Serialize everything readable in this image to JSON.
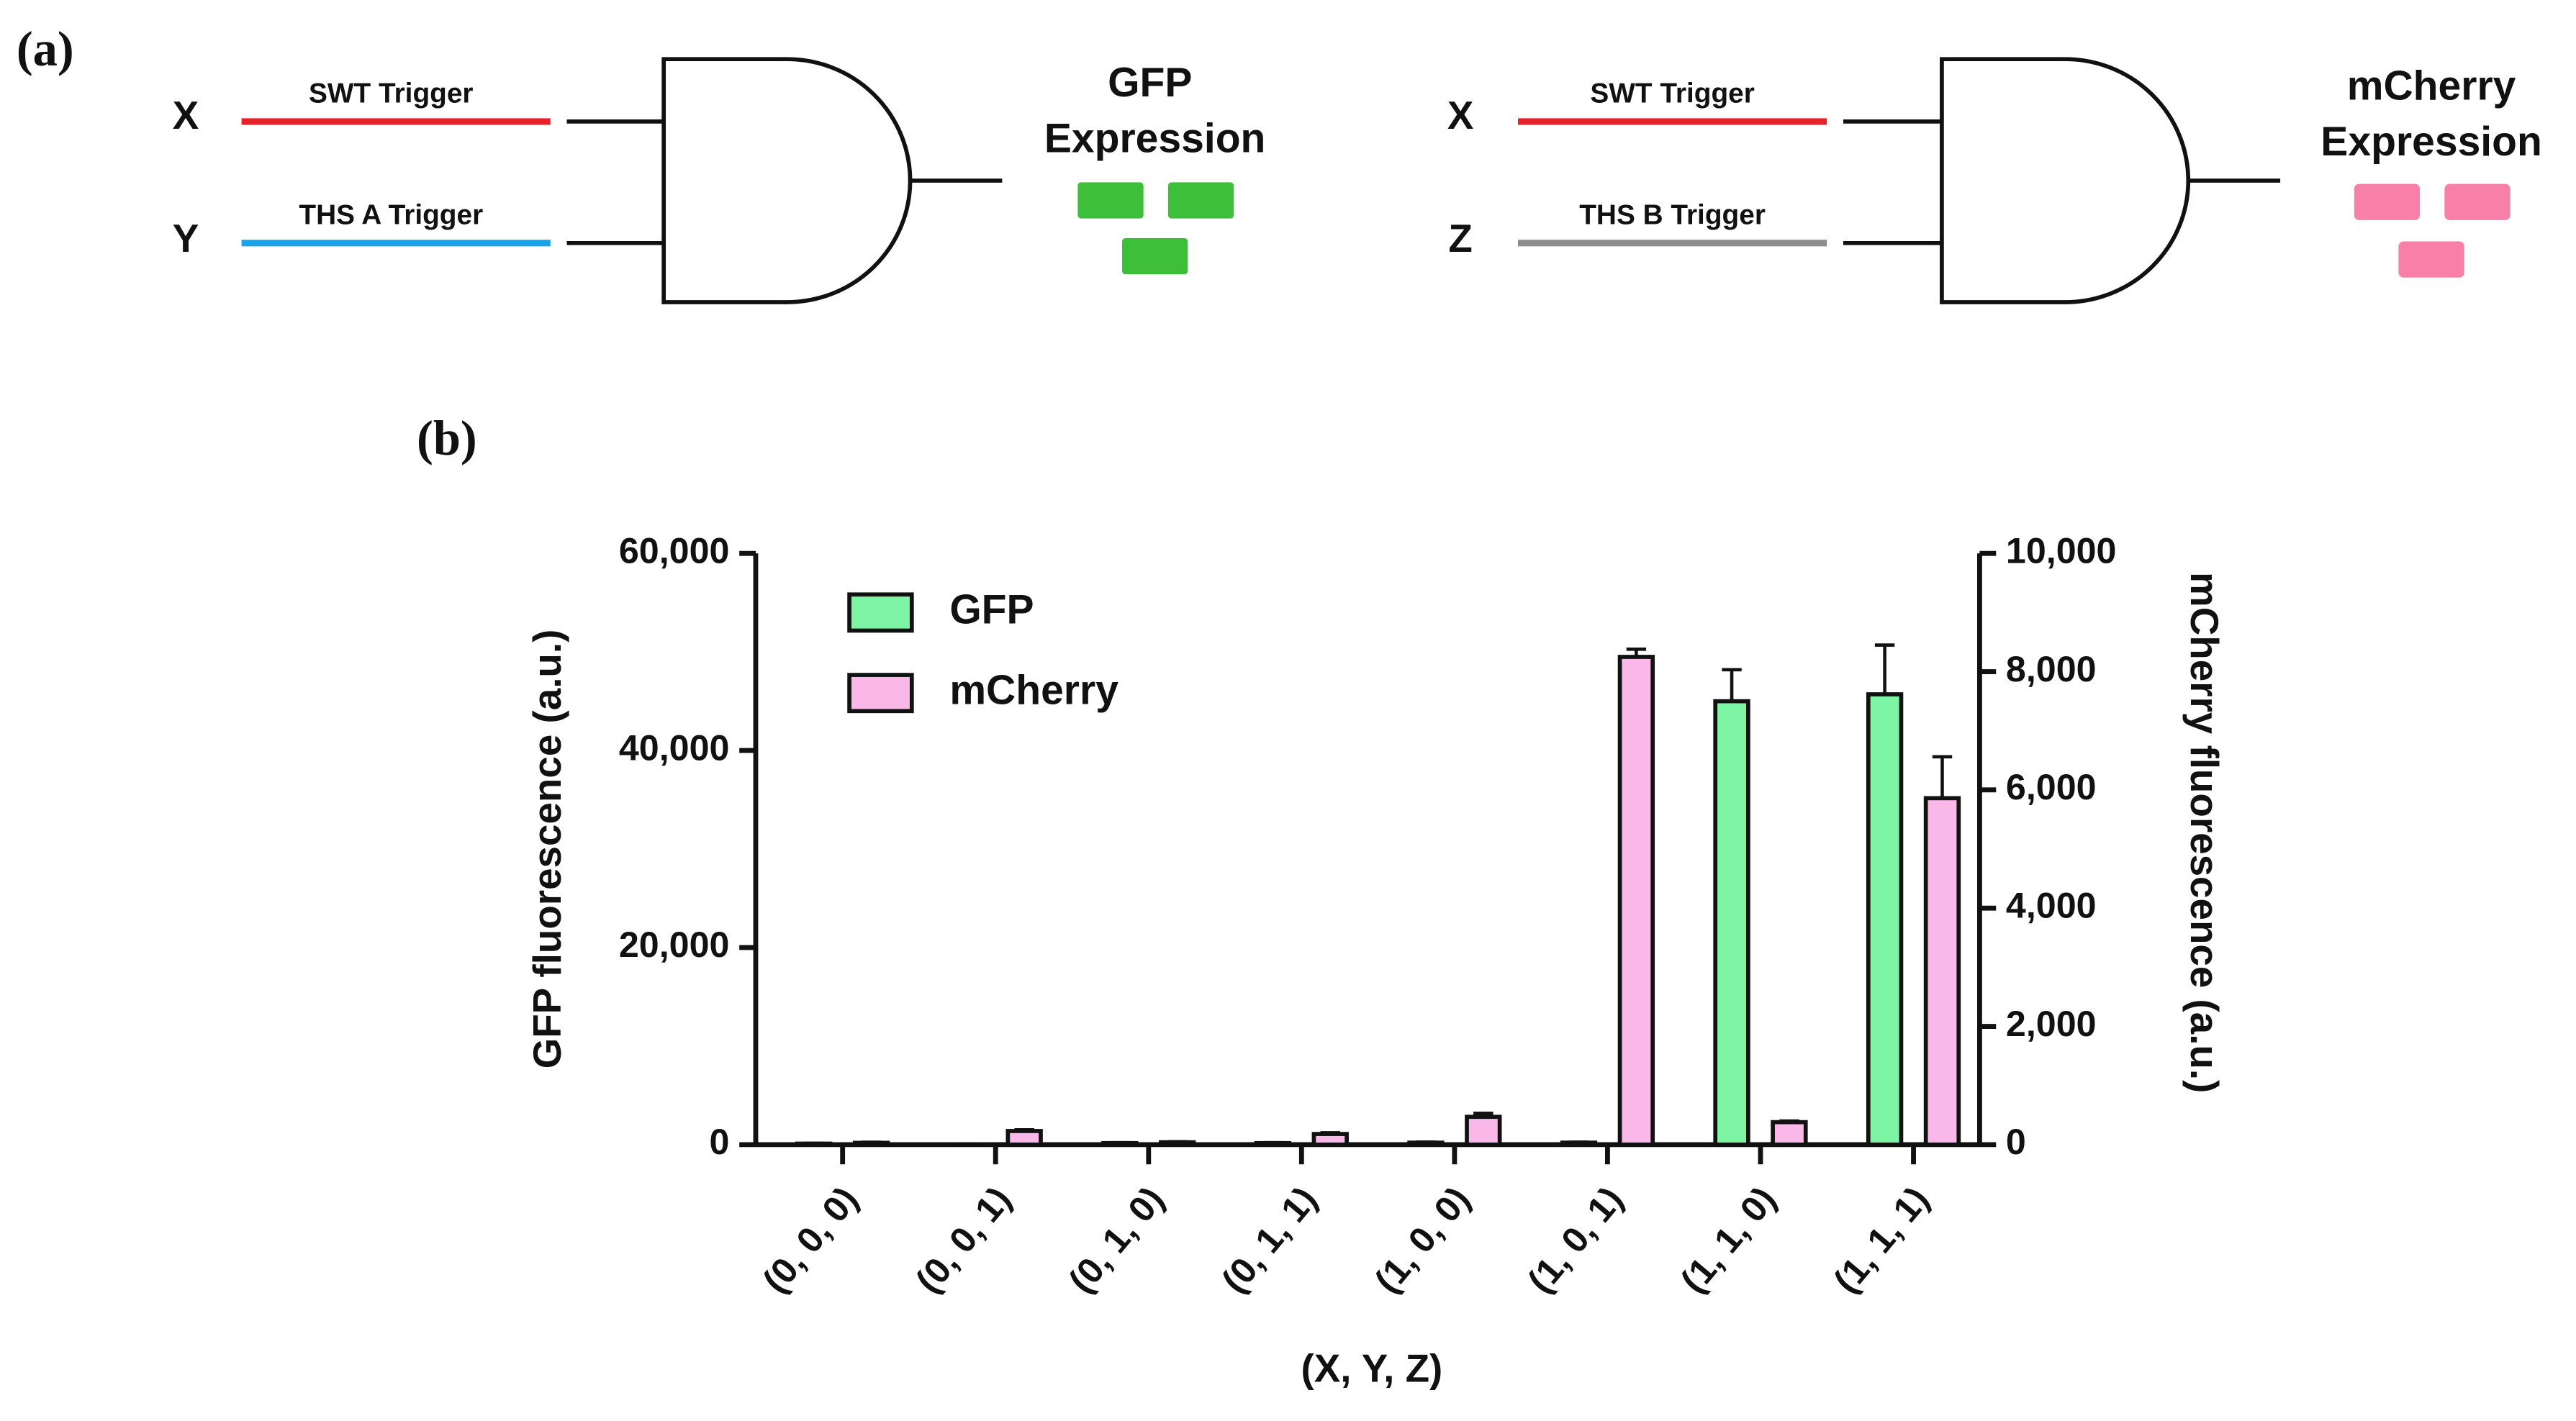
{
  "diagram": {
    "label": "(a)",
    "gates": [
      {
        "inputs": [
          {
            "name": "X",
            "trigger": "SWT Trigger"
          },
          {
            "name": "Y",
            "trigger": "THS A Trigger"
          }
        ],
        "output": [
          "GFP",
          "Expression"
        ]
      },
      {
        "inputs": [
          {
            "name": "X",
            "trigger": "SWT Trigger"
          },
          {
            "name": "Z",
            "trigger": "THS B Trigger"
          }
        ],
        "output": [
          "mCherry",
          "Expression"
        ]
      }
    ]
  },
  "chart_data": {
    "type": "bar",
    "label": "(b)",
    "x_label": "(X, Y, Z)",
    "y_label": "GFP fluorescence (a.u.)",
    "y2_label": "mCherry fluorescence (a.u.)",
    "categories": [
      "(0, 0, 0)",
      "(0, 0, 1)",
      "(0, 1, 0)",
      "(0, 1, 1)",
      "(1, 0, 0)",
      "(1, 0, 1)",
      "(1, 1, 0)",
      "(1, 1, 1)"
    ],
    "series": [
      {
        "name": "GFP",
        "color": "#7ef5a5",
        "axis": "y",
        "values": [
          100,
          0,
          150,
          150,
          200,
          200,
          45000,
          45700
        ],
        "errors": [
          30,
          0,
          50,
          50,
          60,
          50,
          3200,
          5000
        ]
      },
      {
        "name": "mCherry",
        "color": "#f9b8e8",
        "axis": "y2",
        "values": [
          30,
          230,
          40,
          180,
          470,
          8250,
          380,
          5860
        ],
        "errors": [
          10,
          20,
          10,
          20,
          60,
          130,
          20,
          700
        ]
      }
    ],
    "ylim": [
      0,
      60000
    ],
    "yticks": [
      0,
      {
        "value": 20000,
        "label": "20,000"
      },
      {
        "value": 40000,
        "label": "40,000"
      },
      {
        "value": 60000,
        "label": "60,000"
      }
    ],
    "y2lim": [
      0,
      10000
    ],
    "y2ticks": [
      0,
      {
        "value": 2000,
        "label": "2,000"
      },
      {
        "value": 4000,
        "label": "4,000"
      },
      {
        "value": 6000,
        "label": "6,000"
      },
      {
        "value": 8000,
        "label": "8,000"
      },
      {
        "value": 10000,
        "label": "10,000"
      }
    ],
    "legend": "upper left"
  }
}
